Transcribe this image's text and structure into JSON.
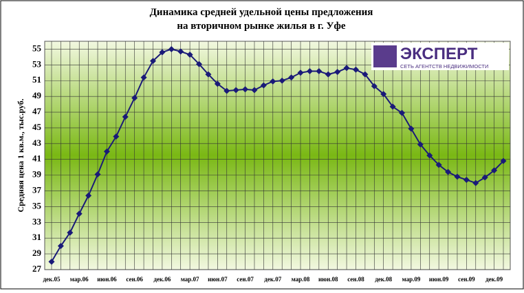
{
  "chart_data": {
    "type": "line",
    "title": "Динамика средней удельной цены предложения",
    "subtitle": "на вторичном рынке жилья в г. Уфе",
    "y_label": "Средняя цена 1 кв.м., тыс.руб.",
    "logo": {
      "name": "ЭКСПЕРТ",
      "tagline": "СЕТЬ АГЕНТСТВ НЕДВИЖИМОСТИ"
    },
    "categories": [
      "дек.05",
      null,
      null,
      "мар.06",
      null,
      null,
      "июн.06",
      null,
      null,
      "сен.06",
      null,
      null,
      "дек.06",
      null,
      null,
      "мар.07",
      null,
      null,
      "июн.07",
      null,
      null,
      "сен.07",
      null,
      null,
      "дек.07",
      null,
      null,
      "мар.08",
      null,
      null,
      "июн.08",
      null,
      null,
      "сен.08",
      null,
      null,
      "дек.08",
      null,
      null,
      "мар.09",
      null,
      null,
      "июн.09",
      null,
      null,
      "сен.09",
      null,
      null,
      "дек.09",
      null
    ],
    "series": [
      {
        "color": "#1a1a78",
        "values": [
          28.0,
          30.0,
          31.7,
          34.1,
          36.4,
          39.1,
          42.0,
          43.9,
          46.4,
          48.8,
          51.4,
          53.5,
          54.6,
          55.0,
          54.7,
          54.3,
          53.1,
          51.8,
          50.6,
          49.7,
          49.8,
          49.9,
          49.8,
          50.4,
          50.9,
          51.0,
          51.4,
          52.0,
          52.2,
          52.2,
          51.8,
          52.1,
          52.6,
          52.4,
          51.8,
          50.3,
          49.3,
          47.7,
          46.9,
          44.9,
          42.9,
          41.5,
          40.3,
          39.4,
          38.8,
          38.4,
          38.0,
          38.7,
          39.6,
          40.8
        ]
      }
    ],
    "ylim": [
      27,
      56
    ],
    "yticks": [
      27,
      29,
      31,
      33,
      35,
      37,
      39,
      41,
      43,
      45,
      47,
      49,
      51,
      53,
      55
    ],
    "grid": true
  }
}
